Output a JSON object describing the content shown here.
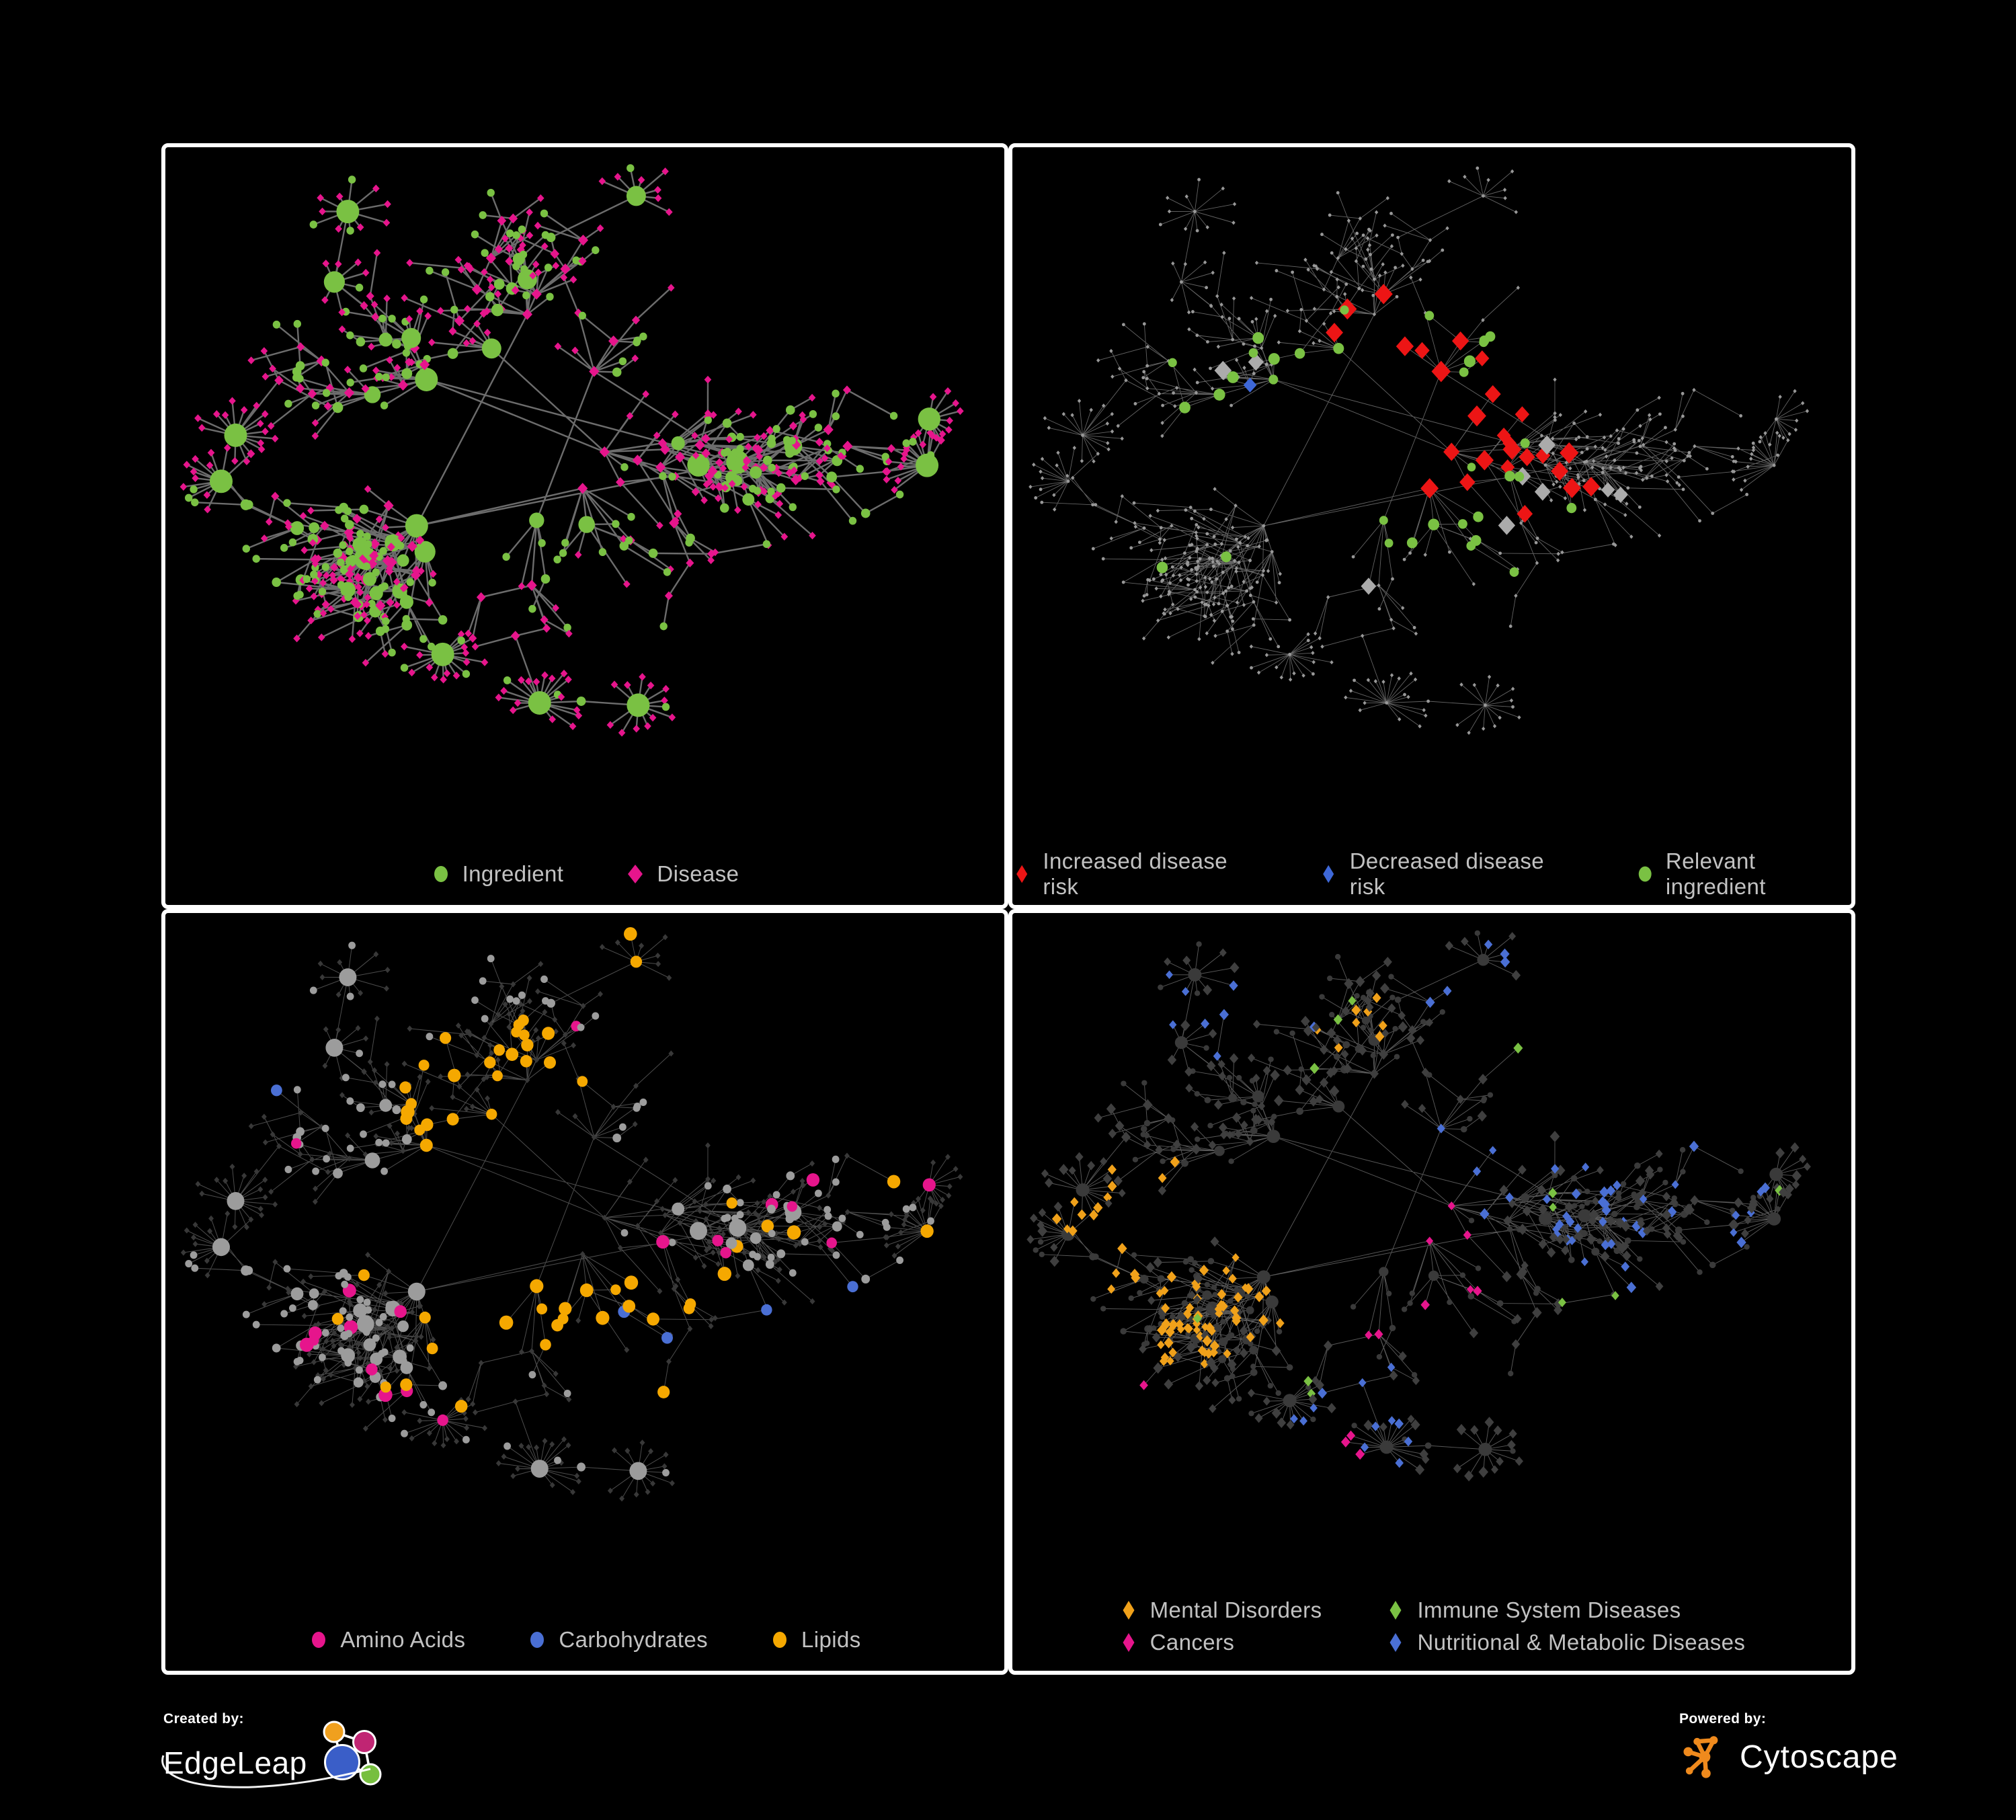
{
  "page": {
    "background": "#000000",
    "panel_border": "#ffffff",
    "legend_text_color": "#c2c2c2"
  },
  "graph": {
    "seed": 911,
    "node_count": 560,
    "diamond_ratio": 0.62,
    "hub_count": 9,
    "star_count": 10,
    "extra_edge_prob": 0.16
  },
  "panels": [
    {
      "id": "ingredient-disease",
      "legend_layout": "row",
      "legend": [
        {
          "label": "Ingredient",
          "shape": "ellipse",
          "color": "#7ac143"
        },
        {
          "label": "Disease",
          "shape": "diamond",
          "color": "#e6158c"
        }
      ],
      "style": {
        "mode": "type-color",
        "edge_color": "#757575",
        "edge_width": 2.4,
        "edge_opacity": 0.92,
        "circle_color": "#7ac143",
        "circle_min_r": 4.6,
        "circle_deg_r": 1.1,
        "circle_max_r": 17,
        "diamond_color": "#e6158c",
        "diamond_size": 4.8
      }
    },
    {
      "id": "disease-risk",
      "legend_layout": "row",
      "legend": [
        {
          "label": "Increased disease risk",
          "shape": "diamond-narrow",
          "color": "#ed1515"
        },
        {
          "label": "Decreased disease risk",
          "shape": "diamond-narrow",
          "color": "#3e68d8"
        },
        {
          "label": "Relevant ingredient",
          "shape": "ellipse",
          "color": "#7ac143"
        }
      ],
      "style": {
        "mode": "dim-highlight",
        "edge_color": "#8d8d8d",
        "edge_width": 0.9,
        "edge_opacity": 0.7,
        "base_color": "#989898",
        "base_size": 2.4,
        "highlights": [
          {
            "type": "diamond",
            "color": "#ed1515",
            "size": 13,
            "clusters": [
              [
                0.5,
                0.4,
                0.13,
                18
              ],
              [
                0.62,
                0.5,
                0.09,
                6
              ],
              [
                0.44,
                0.27,
                0.06,
                3
              ],
              [
                0.79,
                0.79,
                0.06,
                3
              ],
              [
                0.93,
                0.52,
                0.05,
                2
              ]
            ]
          },
          {
            "type": "diamond",
            "color": "#3e68d8",
            "size": 12,
            "clusters": [
              [
                0.33,
                0.4,
                0.09,
                7
              ],
              [
                0.87,
                0.28,
                0.05,
                2
              ]
            ]
          },
          {
            "type": "diamond",
            "color": "#ababab",
            "size": 12,
            "clusters": [
              [
                0.29,
                0.33,
                0.06,
                2
              ],
              [
                0.54,
                0.47,
                0.12,
                4
              ],
              [
                0.4,
                0.63,
                0.05,
                1
              ],
              [
                0.68,
                0.5,
                0.06,
                2
              ]
            ]
          },
          {
            "type": "circle",
            "color": "#7ac143",
            "size": 9,
            "clusters": [
              [
                0.46,
                0.4,
                0.18,
                24
              ],
              [
                0.27,
                0.38,
                0.11,
                6
              ],
              [
                0.6,
                0.62,
                0.13,
                4
              ],
              [
                0.95,
                0.58,
                0.06,
                2
              ],
              [
                0.23,
                0.57,
                0.08,
                2
              ]
            ]
          }
        ]
      }
    },
    {
      "id": "nutrient-classes",
      "legend_layout": "row",
      "legend": [
        {
          "label": "Amino Acids",
          "shape": "ellipse",
          "color": "#e6158c"
        },
        {
          "label": "Carbohydrates",
          "shape": "ellipse",
          "color": "#4a6fd4"
        },
        {
          "label": "Lipids",
          "shape": "ellipse",
          "color": "#f5a800"
        }
      ],
      "style": {
        "mode": "class-color",
        "edge_color": "#a8a8a8",
        "edge_width": 1.0,
        "edge_opacity": 0.45,
        "diamond_color": "#383838",
        "diamond_size": 4.4,
        "circle_default": "#9c9c9c",
        "circle_min_r": 4.4,
        "circle_deg_r": 1.0,
        "circle_max_r": 13,
        "class_size": 9,
        "classes": [
          {
            "color": "#f5a800",
            "clusters": [
              [
                0.41,
                0.28,
                0.13,
                40
              ],
              [
                0.43,
                0.53,
                0.1,
                12
              ],
              [
                0.61,
                0.62,
                0.13,
                9
              ],
              [
                0.29,
                0.58,
                0.16,
                7
              ],
              [
                0.74,
                0.5,
                0.12,
                4
              ],
              [
                0.52,
                0.07,
                0.06,
                2
              ],
              [
                0.86,
                0.44,
                0.07,
                2
              ]
            ]
          },
          {
            "color": "#4a6fd4",
            "clusters": [
              [
                0.39,
                0.26,
                0.09,
                10
              ],
              [
                0.63,
                0.66,
                0.14,
                3
              ],
              [
                0.12,
                0.3,
                0.06,
                1
              ],
              [
                0.81,
                0.6,
                0.07,
                1
              ]
            ]
          },
          {
            "color": "#e6158c",
            "clusters": [
              [
                0.5,
                0.52,
                0.55,
                20
              ]
            ]
          }
        ]
      }
    },
    {
      "id": "disease-categories",
      "legend_layout": "grid2",
      "legend": [
        {
          "label": "Mental Disorders",
          "shape": "diamond-narrow",
          "color": "#f0a11a"
        },
        {
          "label": "Immune System Diseases",
          "shape": "diamond-narrow",
          "color": "#7ac143"
        },
        {
          "label": "Cancers",
          "shape": "diamond-narrow",
          "color": "#e6158c"
        },
        {
          "label": "Nutritional & Metabolic Diseases",
          "shape": "diamond-narrow",
          "color": "#4a6fd4"
        }
      ],
      "style": {
        "mode": "category-color",
        "edge_color": "#949494",
        "edge_width": 0.95,
        "edge_opacity": 0.6,
        "circle_color": "#3a3a3a",
        "circle_min_r": 3.6,
        "circle_deg_r": 0.6,
        "circle_max_r": 10,
        "diamond_default": "#3f3f3f",
        "diamond_size": 7.5,
        "categories": [
          {
            "color": "#f0a11a",
            "clusters": [
              [
                0.2,
                0.52,
                0.16,
                80
              ],
              [
                0.4,
                0.13,
                0.09,
                8
              ],
              [
                0.5,
                0.9,
                0.06,
                3
              ],
              [
                0.09,
                0.78,
                0.05,
                2
              ]
            ]
          },
          {
            "color": "#7ac143",
            "clusters": [
              [
                0.5,
                0.45,
                0.42,
                12
              ]
            ]
          },
          {
            "color": "#e6158c",
            "clusters": [
              [
                0.47,
                0.53,
                0.12,
                42
              ],
              [
                0.88,
                0.23,
                0.07,
                8
              ],
              [
                0.36,
                0.82,
                0.06,
                4
              ],
              [
                0.61,
                0.91,
                0.04,
                2
              ],
              [
                0.13,
                0.7,
                0.04,
                2
              ]
            ]
          },
          {
            "color": "#4a6fd4",
            "clusters": [
              [
                0.68,
                0.4,
                0.22,
                42
              ],
              [
                0.43,
                0.77,
                0.12,
                12
              ],
              [
                0.26,
                0.12,
                0.12,
                9
              ],
              [
                0.88,
                0.58,
                0.1,
                8
              ],
              [
                0.56,
                0.1,
                0.09,
                5
              ],
              [
                0.94,
                0.8,
                0.05,
                2
              ]
            ]
          }
        ]
      }
    }
  ],
  "footer": {
    "created_by": {
      "label": "Created by:",
      "brand": "EdgeLeap",
      "logo_colors": {
        "orange": "#f0a01e",
        "magenta": "#c02573",
        "blue": "#3a5ec8",
        "green": "#77bf3f"
      }
    },
    "powered_by": {
      "label": "Powered by:",
      "brand": "Cytoscape",
      "icon_color": "#ef8a1d"
    }
  }
}
